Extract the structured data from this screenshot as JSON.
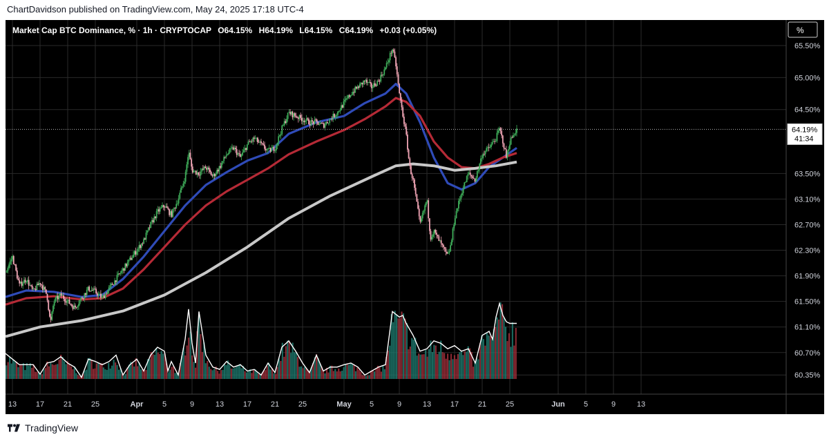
{
  "header": {
    "published_text": "ChartDavidson published on TradingView.com, May 24, 2025 17:18 UTC-4"
  },
  "footer": {
    "brand": "TradingView",
    "logo_icon": "tradingview-logo-icon"
  },
  "colors": {
    "background": "#000000",
    "grid": "#2a2a2a",
    "axis_text": "#d1d4dc",
    "candle_up": "#3fae5a",
    "candle_down": "#f2a6b6",
    "ema_fast": "#2f4bb8",
    "ema_mid": "#b52a36",
    "ema_slow": "#c8c8c8",
    "volume_up": "#1f7a6e",
    "volume_down": "#9e2f3a",
    "volume_ma": "#ffffff"
  },
  "chart_data": {
    "type": "candlestick",
    "legend": {
      "symbol_line": "Market Cap BTC Dominance, % · 1h · CRYPTOCAP",
      "open_label": "O",
      "open": "64.15%",
      "high_label": "H",
      "high": "64.19%",
      "low_label": "L",
      "low": "64.15%",
      "close_label": "C",
      "close": "64.19%",
      "change": "+0.03 (+0.05%)"
    },
    "scale_button": "%",
    "last_price": {
      "value": "64.19%",
      "countdown": "41:34",
      "level": 64.19
    },
    "y_axis": {
      "range": [
        60.05,
        65.9
      ],
      "ticks": [
        {
          "value": 65.5,
          "label": "65.50%"
        },
        {
          "value": 65.0,
          "label": "65.00%"
        },
        {
          "value": 64.5,
          "label": "64.50%"
        },
        {
          "value": 63.5,
          "label": "63.50%"
        },
        {
          "value": 63.1,
          "label": "63.10%"
        },
        {
          "value": 62.7,
          "label": "62.70%"
        },
        {
          "value": 62.3,
          "label": "62.30%"
        },
        {
          "value": 61.9,
          "label": "61.90%"
        },
        {
          "value": 61.5,
          "label": "61.50%"
        },
        {
          "value": 61.1,
          "label": "61.10%"
        },
        {
          "value": 60.7,
          "label": "60.70%"
        },
        {
          "value": 60.35,
          "label": "60.35%"
        }
      ]
    },
    "x_axis": {
      "day_range": [
        -19,
        94
      ],
      "ticks": [
        {
          "day": -18,
          "label": "13"
        },
        {
          "day": -14,
          "label": "17"
        },
        {
          "day": -10,
          "label": "21"
        },
        {
          "day": -6,
          "label": "25"
        },
        {
          "day": 0,
          "label": "Apr"
        },
        {
          "day": 4,
          "label": "5"
        },
        {
          "day": 8,
          "label": "9"
        },
        {
          "day": 12,
          "label": "13"
        },
        {
          "day": 16,
          "label": "17"
        },
        {
          "day": 20,
          "label": "21"
        },
        {
          "day": 24,
          "label": "25"
        },
        {
          "day": 30,
          "label": "May"
        },
        {
          "day": 34,
          "label": "5"
        },
        {
          "day": 38,
          "label": "9"
        },
        {
          "day": 42,
          "label": "13"
        },
        {
          "day": 46,
          "label": "17"
        },
        {
          "day": 50,
          "label": "21"
        },
        {
          "day": 54,
          "label": "25"
        },
        {
          "day": 61,
          "label": "Jun"
        },
        {
          "day": 65,
          "label": "5"
        },
        {
          "day": 69,
          "label": "9"
        },
        {
          "day": 73,
          "label": "13"
        }
      ]
    },
    "price_path": [
      [
        -19,
        61.95
      ],
      [
        -18,
        62.2
      ],
      [
        -17,
        61.75
      ],
      [
        -16,
        61.85
      ],
      [
        -15,
        61.65
      ],
      [
        -14,
        61.8
      ],
      [
        -13,
        61.6
      ],
      [
        -12.5,
        61.15
      ],
      [
        -12,
        61.5
      ],
      [
        -11,
        61.6
      ],
      [
        -10,
        61.5
      ],
      [
        -9,
        61.4
      ],
      [
        -8,
        61.55
      ],
      [
        -7,
        61.7
      ],
      [
        -6,
        61.65
      ],
      [
        -5,
        61.55
      ],
      [
        -4,
        61.7
      ],
      [
        -3,
        61.85
      ],
      [
        -2,
        62.0
      ],
      [
        -1,
        62.15
      ],
      [
        0,
        62.3
      ],
      [
        1,
        62.45
      ],
      [
        2,
        62.7
      ],
      [
        3,
        62.9
      ],
      [
        4,
        63.0
      ],
      [
        5,
        62.85
      ],
      [
        6,
        63.1
      ],
      [
        7,
        63.45
      ],
      [
        7.5,
        63.85
      ],
      [
        8,
        63.55
      ],
      [
        9,
        63.5
      ],
      [
        10,
        63.6
      ],
      [
        11,
        63.45
      ],
      [
        12,
        63.6
      ],
      [
        13,
        63.8
      ],
      [
        14,
        63.9
      ],
      [
        15,
        63.75
      ],
      [
        16,
        63.95
      ],
      [
        17,
        64.05
      ],
      [
        18,
        63.95
      ],
      [
        19,
        63.85
      ],
      [
        20,
        63.9
      ],
      [
        21,
        64.2
      ],
      [
        22,
        64.45
      ],
      [
        23,
        64.4
      ],
      [
        24,
        64.35
      ],
      [
        25,
        64.3
      ],
      [
        26,
        64.3
      ],
      [
        27,
        64.25
      ],
      [
        28,
        64.35
      ],
      [
        29,
        64.45
      ],
      [
        30,
        64.6
      ],
      [
        31,
        64.75
      ],
      [
        32,
        64.85
      ],
      [
        33,
        64.95
      ],
      [
        34,
        64.85
      ],
      [
        35,
        64.95
      ],
      [
        36,
        65.15
      ],
      [
        37,
        65.45
      ],
      [
        37.5,
        65.2
      ],
      [
        38,
        64.75
      ],
      [
        39,
        64.1
      ],
      [
        39.5,
        63.6
      ],
      [
        40,
        63.4
      ],
      [
        41,
        62.7
      ],
      [
        42,
        63.1
      ],
      [
        42.5,
        62.5
      ],
      [
        43,
        62.6
      ],
      [
        44,
        62.4
      ],
      [
        45,
        62.2
      ],
      [
        45.5,
        62.4
      ],
      [
        46,
        62.8
      ],
      [
        47,
        63.2
      ],
      [
        48,
        63.5
      ],
      [
        49,
        63.4
      ],
      [
        50,
        63.8
      ],
      [
        51,
        63.9
      ],
      [
        52,
        64.05
      ],
      [
        52.5,
        64.2
      ],
      [
        53,
        64.0
      ],
      [
        53.5,
        63.75
      ],
      [
        54,
        64.0
      ],
      [
        54.5,
        64.1
      ],
      [
        55,
        64.2
      ]
    ],
    "series": [
      {
        "role": "ema_fast",
        "points": [
          [
            -19,
            61.57
          ],
          [
            -16,
            61.67
          ],
          [
            -12,
            61.65
          ],
          [
            -8,
            61.57
          ],
          [
            -5,
            61.6
          ],
          [
            -2,
            61.85
          ],
          [
            1,
            62.2
          ],
          [
            4,
            62.6
          ],
          [
            7,
            63.0
          ],
          [
            10,
            63.32
          ],
          [
            13,
            63.52
          ],
          [
            16,
            63.7
          ],
          [
            19,
            63.82
          ],
          [
            22,
            64.12
          ],
          [
            26,
            64.3
          ],
          [
            30,
            64.4
          ],
          [
            33,
            64.6
          ],
          [
            36,
            64.75
          ],
          [
            37.5,
            64.9
          ],
          [
            39,
            64.75
          ],
          [
            41,
            64.3
          ],
          [
            43,
            63.75
          ],
          [
            45,
            63.35
          ],
          [
            47,
            63.25
          ],
          [
            49,
            63.35
          ],
          [
            51,
            63.6
          ],
          [
            53,
            63.75
          ],
          [
            55,
            63.9
          ]
        ]
      },
      {
        "role": "ema_mid",
        "points": [
          [
            -19,
            61.45
          ],
          [
            -16,
            61.55
          ],
          [
            -12,
            61.58
          ],
          [
            -8,
            61.53
          ],
          [
            -5,
            61.55
          ],
          [
            -2,
            61.7
          ],
          [
            1,
            62.0
          ],
          [
            4,
            62.35
          ],
          [
            7,
            62.7
          ],
          [
            10,
            63.0
          ],
          [
            13,
            63.22
          ],
          [
            16,
            63.4
          ],
          [
            19,
            63.58
          ],
          [
            22,
            63.8
          ],
          [
            26,
            64.0
          ],
          [
            30,
            64.18
          ],
          [
            33,
            64.35
          ],
          [
            36,
            64.55
          ],
          [
            37.5,
            64.68
          ],
          [
            39,
            64.62
          ],
          [
            41,
            64.4
          ],
          [
            43,
            64.0
          ],
          [
            45,
            63.75
          ],
          [
            47,
            63.6
          ],
          [
            49,
            63.58
          ],
          [
            51,
            63.65
          ],
          [
            53,
            63.75
          ],
          [
            55,
            63.82
          ]
        ]
      },
      {
        "role": "ema_slow",
        "points": [
          [
            -19,
            60.95
          ],
          [
            -14,
            61.1
          ],
          [
            -8,
            61.2
          ],
          [
            -2,
            61.35
          ],
          [
            4,
            61.6
          ],
          [
            10,
            61.95
          ],
          [
            16,
            62.35
          ],
          [
            22,
            62.8
          ],
          [
            28,
            63.15
          ],
          [
            34,
            63.45
          ],
          [
            37.5,
            63.62
          ],
          [
            40,
            63.65
          ],
          [
            43,
            63.62
          ],
          [
            46,
            63.55
          ],
          [
            49,
            63.58
          ],
          [
            52,
            63.62
          ],
          [
            55,
            63.68
          ]
        ]
      }
    ],
    "volume": {
      "range": [
        0,
        1
      ],
      "ma_points": [
        [
          -19,
          0.32
        ],
        [
          -17,
          0.18
        ],
        [
          -15,
          0.18
        ],
        [
          -14,
          0.06
        ],
        [
          -13,
          0.2
        ],
        [
          -12,
          0.22
        ],
        [
          -11,
          0.28
        ],
        [
          -10,
          0.2
        ],
        [
          -9,
          0.15
        ],
        [
          -8,
          0.02
        ],
        [
          -7,
          0.25
        ],
        [
          -6,
          0.22
        ],
        [
          -5,
          0.18
        ],
        [
          -4,
          0.22
        ],
        [
          -3,
          0.3
        ],
        [
          -2,
          0.05
        ],
        [
          -1,
          0.18
        ],
        [
          0,
          0.25
        ],
        [
          1,
          0.1
        ],
        [
          2,
          0.3
        ],
        [
          3,
          0.4
        ],
        [
          4,
          0.35
        ],
        [
          4.5,
          0.1
        ],
        [
          5,
          0.22
        ],
        [
          6,
          0.05
        ],
        [
          7,
          0.5
        ],
        [
          7.5,
          0.88
        ],
        [
          8,
          0.45
        ],
        [
          8.5,
          0.2
        ],
        [
          9,
          0.85
        ],
        [
          10,
          0.3
        ],
        [
          11,
          0.15
        ],
        [
          12,
          0.12
        ],
        [
          13,
          0.22
        ],
        [
          14,
          0.15
        ],
        [
          15,
          0.18
        ],
        [
          16,
          0.1
        ],
        [
          17,
          0.12
        ],
        [
          18,
          0.05
        ],
        [
          19,
          0.2
        ],
        [
          20,
          0.08
        ],
        [
          21,
          0.4
        ],
        [
          22,
          0.48
        ],
        [
          23,
          0.35
        ],
        [
          24,
          0.2
        ],
        [
          25,
          0.08
        ],
        [
          26,
          0.3
        ],
        [
          27,
          0.1
        ],
        [
          28,
          0.15
        ],
        [
          29,
          0.15
        ],
        [
          30,
          0.18
        ],
        [
          31,
          0.2
        ],
        [
          32,
          0.15
        ],
        [
          33,
          0.05
        ],
        [
          34,
          0.1
        ],
        [
          35,
          0.15
        ],
        [
          36,
          0.18
        ],
        [
          37,
          0.85
        ],
        [
          38,
          0.78
        ],
        [
          38.5,
          0.8
        ],
        [
          39,
          0.7
        ],
        [
          40,
          0.55
        ],
        [
          41,
          0.35
        ],
        [
          42,
          0.38
        ],
        [
          43,
          0.48
        ],
        [
          44,
          0.45
        ],
        [
          45,
          0.38
        ],
        [
          46,
          0.42
        ],
        [
          47,
          0.35
        ],
        [
          48,
          0.38
        ],
        [
          49,
          0.2
        ],
        [
          50,
          0.55
        ],
        [
          51,
          0.6
        ],
        [
          51.5,
          0.5
        ],
        [
          52,
          0.78
        ],
        [
          52.5,
          0.95
        ],
        [
          53,
          0.8
        ],
        [
          53.5,
          0.72
        ],
        [
          54,
          0.7
        ],
        [
          55,
          0.7
        ]
      ]
    }
  }
}
